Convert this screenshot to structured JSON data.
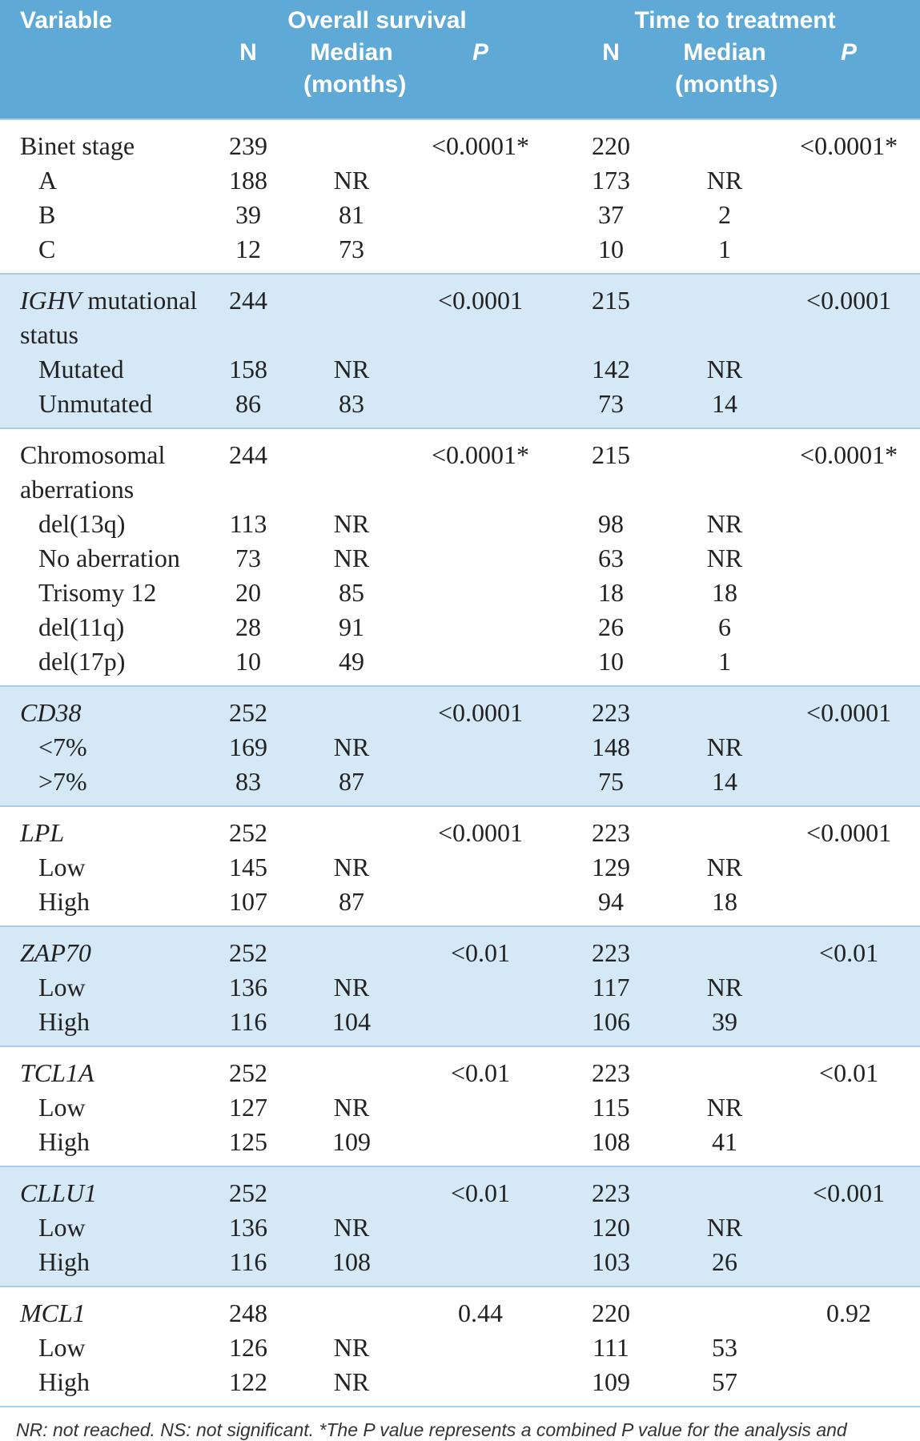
{
  "header": {
    "variable": "Variable",
    "overall_survival": {
      "title": "Overall survival",
      "columns": [
        "N",
        "Median (months)",
        "P"
      ]
    },
    "time_to_treatment": {
      "title": "Time to treatment",
      "columns": [
        "N",
        "Median (months)",
        "P"
      ]
    }
  },
  "groups": [
    {
      "shaded": false,
      "italic": false,
      "rows": [
        [
          "Binet stage",
          239,
          null,
          "<0.0001*",
          220,
          null,
          "<0.0001*"
        ],
        [
          "A",
          188,
          "NR",
          null,
          173,
          "NR",
          null
        ],
        [
          "B",
          39,
          81,
          null,
          37,
          2,
          null
        ],
        [
          "C",
          12,
          73,
          null,
          10,
          1,
          null
        ]
      ]
    },
    {
      "shaded": true,
      "italic": true,
      "label_rest": "mutational status",
      "rows": [
        [
          "IGHV",
          244,
          null,
          "<0.0001",
          215,
          null,
          "<0.0001"
        ],
        [
          "Mutated",
          158,
          "NR",
          null,
          142,
          "NR",
          null
        ],
        [
          "Unmutated",
          86,
          83,
          null,
          73,
          14,
          null
        ]
      ]
    },
    {
      "shaded": false,
      "italic": false,
      "rows": [
        [
          "Chromosomal aberrations",
          244,
          null,
          "<0.0001*",
          215,
          null,
          "<0.0001*"
        ],
        [
          "del(13q)",
          113,
          "NR",
          null,
          98,
          "NR",
          null
        ],
        [
          "No aberration",
          73,
          "NR",
          null,
          63,
          "NR",
          null
        ],
        [
          "Trisomy 12",
          20,
          85,
          null,
          18,
          18,
          null
        ],
        [
          "del(11q)",
          28,
          91,
          null,
          26,
          6,
          null
        ],
        [
          "del(17p)",
          10,
          49,
          null,
          10,
          1,
          null
        ]
      ]
    },
    {
      "shaded": true,
      "italic": true,
      "rows": [
        [
          "CD38",
          252,
          null,
          "<0.0001",
          223,
          null,
          "<0.0001"
        ],
        [
          "<7%",
          169,
          "NR",
          null,
          148,
          "NR",
          null
        ],
        [
          ">7%",
          83,
          87,
          null,
          75,
          14,
          null
        ]
      ]
    },
    {
      "shaded": false,
      "italic": true,
      "rows": [
        [
          "LPL",
          252,
          null,
          "<0.0001",
          223,
          null,
          "<0.0001"
        ],
        [
          "Low",
          145,
          "NR",
          null,
          129,
          "NR",
          null
        ],
        [
          "High",
          107,
          87,
          null,
          94,
          18,
          null
        ]
      ]
    },
    {
      "shaded": true,
      "italic": true,
      "rows": [
        [
          "ZAP70",
          252,
          null,
          "<0.01",
          223,
          null,
          "<0.01"
        ],
        [
          "Low",
          136,
          "NR",
          null,
          117,
          "NR",
          null
        ],
        [
          "High",
          116,
          104,
          null,
          106,
          39,
          null
        ]
      ]
    },
    {
      "shaded": false,
      "italic": true,
      "rows": [
        [
          "TCL1A",
          252,
          null,
          "<0.01",
          223,
          null,
          "<0.01"
        ],
        [
          "Low",
          127,
          "NR",
          null,
          115,
          "NR",
          null
        ],
        [
          "High",
          125,
          109,
          null,
          108,
          41,
          null
        ]
      ]
    },
    {
      "shaded": true,
      "italic": true,
      "rows": [
        [
          "CLLU1",
          252,
          null,
          "<0.01",
          223,
          null,
          "<0.001"
        ],
        [
          "Low",
          136,
          "NR",
          null,
          120,
          "NR",
          null
        ],
        [
          "High",
          116,
          108,
          null,
          103,
          26,
          null
        ]
      ]
    },
    {
      "shaded": false,
      "italic": true,
      "rows": [
        [
          "MCL1",
          248,
          null,
          0.44,
          220,
          null,
          0.92
        ],
        [
          "Low",
          126,
          "NR",
          null,
          111,
          53,
          null
        ],
        [
          "High",
          122,
          "NR",
          null,
          109,
          57,
          null
        ]
      ]
    }
  ],
  "footnote": "NR: not reached. NS: not significant. *The P value represents a combined P value for the analysis and indicates that at least one group differs significantly from the rest."
}
